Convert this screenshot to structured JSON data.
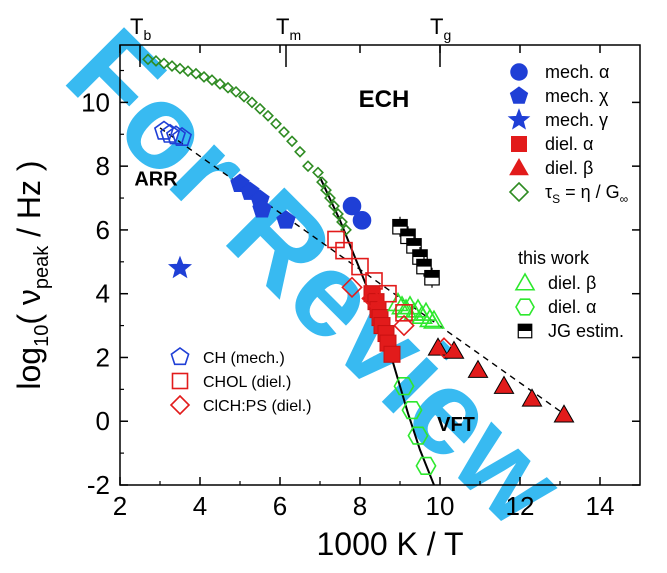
{
  "colors": {
    "blue": "#1f3fd6",
    "red": "#e21b1b",
    "dark_red": "#c81010",
    "green": "#2e8b22",
    "light_green": "#2ee82e",
    "black": "#000000",
    "watermark": "#22b3f0"
  },
  "watermark_text": "For Review",
  "chart_data": {
    "type": "scatter",
    "xlabel": "1000 K / T",
    "ylabel_parts": {
      "main": "log",
      "sub": "10",
      "open": "( ν",
      "peak": "peak",
      "unit": " / Hz )"
    },
    "xlim": [
      2,
      15
    ],
    "ylim": [
      -2,
      11.8
    ],
    "x_ticks": [
      2,
      4,
      6,
      8,
      10,
      12,
      14
    ],
    "y_ticks": [
      -2,
      0,
      2,
      4,
      6,
      8,
      10
    ],
    "top_axis_labels": [
      {
        "main": "T",
        "sub": "b",
        "x": 2.5
      },
      {
        "main": "T",
        "sub": "m",
        "x": 6.15
      },
      {
        "main": "T",
        "sub": "g",
        "x": 10.0
      }
    ],
    "annotations": [
      {
        "text": "ECH",
        "x": 8.6,
        "y": 9.85
      },
      {
        "text": "ARR",
        "x": 2.9,
        "y": 7.4
      },
      {
        "text": "VFT",
        "x": 10.4,
        "y": -0.3
      }
    ],
    "legend_right": [
      {
        "label": "mech. α",
        "marker": "circle",
        "fill": "blue"
      },
      {
        "label": "mech. χ",
        "marker": "pentagon",
        "fill": "blue"
      },
      {
        "label": "mech. γ",
        "marker": "star",
        "fill": "blue"
      },
      {
        "label": "diel. α",
        "marker": "square",
        "fill": "red"
      },
      {
        "label": "diel. β",
        "marker": "triangle",
        "fill": "red"
      },
      {
        "label_main": "τ",
        "label_sub": "S",
        "label_rest": " = η / G",
        "label_sub2": "∞",
        "marker": "diamond",
        "fill": "none",
        "stroke": "green"
      }
    ],
    "legend_this_work": {
      "title": "this work",
      "items": [
        {
          "label": "diel. β",
          "marker": "triangle",
          "fill": "none",
          "stroke": "light_green"
        },
        {
          "label": "diel. α",
          "marker": "hexagon",
          "fill": "none",
          "stroke": "light_green"
        },
        {
          "label": "JG estim.",
          "marker": "halfsquare",
          "fill": "black"
        }
      ]
    },
    "legend_left": [
      {
        "label": "CH  (mech.)",
        "marker": "pentagon",
        "fill": "none",
        "stroke": "blue"
      },
      {
        "label": "CHOL (diel.)",
        "marker": "square",
        "fill": "none",
        "stroke": "red"
      },
      {
        "label": "ClCH:PS (diel.)",
        "marker": "diamond",
        "fill": "none",
        "stroke": "red"
      }
    ],
    "series": [
      {
        "name": "mech. α",
        "marker": "circle",
        "fill": "blue",
        "stroke": "blue",
        "points": [
          [
            7.8,
            6.75
          ],
          [
            8.05,
            6.3
          ]
        ]
      },
      {
        "name": "mech. χ",
        "marker": "pentagon",
        "fill": "blue",
        "stroke": "blue",
        "points": [
          [
            5.0,
            7.45
          ],
          [
            5.25,
            7.2
          ],
          [
            5.5,
            6.95
          ],
          [
            5.55,
            6.65
          ],
          [
            6.15,
            6.3
          ]
        ]
      },
      {
        "name": "mech. γ",
        "marker": "star",
        "fill": "blue",
        "stroke": "blue",
        "points": [
          [
            3.5,
            4.8
          ]
        ]
      },
      {
        "name": "diel. α",
        "marker": "square",
        "fill": "red",
        "stroke": "dark_red",
        "points": [
          [
            8.3,
            4.0
          ],
          [
            8.4,
            3.75
          ],
          [
            8.45,
            3.5
          ],
          [
            8.5,
            3.25
          ],
          [
            8.55,
            3.0
          ],
          [
            8.65,
            2.75
          ],
          [
            8.7,
            2.45
          ],
          [
            8.8,
            2.1
          ]
        ]
      },
      {
        "name": "diel. β",
        "marker": "triangle",
        "fill": "red",
        "stroke": "black",
        "points": [
          [
            9.95,
            2.3
          ],
          [
            10.35,
            2.2
          ],
          [
            10.95,
            1.6
          ],
          [
            11.6,
            1.1
          ],
          [
            12.3,
            0.7
          ],
          [
            13.1,
            0.2
          ]
        ]
      },
      {
        "name": "tau_S",
        "marker": "diamond",
        "fill": "none",
        "stroke": "green",
        "points": [
          [
            2.7,
            11.35
          ],
          [
            2.9,
            11.3
          ],
          [
            3.1,
            11.22
          ],
          [
            3.3,
            11.14
          ],
          [
            3.5,
            11.06
          ],
          [
            3.7,
            10.98
          ],
          [
            3.9,
            10.9
          ],
          [
            4.1,
            10.8
          ],
          [
            4.3,
            10.7
          ],
          [
            4.5,
            10.58
          ],
          [
            4.7,
            10.46
          ],
          [
            4.9,
            10.33
          ],
          [
            5.1,
            10.18
          ],
          [
            5.3,
            10.0
          ],
          [
            5.5,
            9.8
          ],
          [
            5.7,
            9.58
          ],
          [
            5.9,
            9.33
          ],
          [
            6.1,
            9.07
          ],
          [
            6.3,
            8.78
          ],
          [
            6.5,
            8.45
          ],
          [
            6.7,
            8.0
          ],
          [
            6.95,
            7.8
          ],
          [
            7.05,
            7.5
          ],
          [
            7.15,
            7.25
          ],
          [
            7.25,
            7.0
          ],
          [
            7.35,
            6.75
          ],
          [
            7.45,
            6.5
          ],
          [
            7.55,
            6.25
          ],
          [
            7.65,
            6.0
          ]
        ]
      },
      {
        "name": "this work diel. β",
        "marker": "triangle",
        "fill": "none",
        "stroke": "light_green",
        "points": [
          [
            8.95,
            3.7
          ],
          [
            9.05,
            3.6
          ],
          [
            9.15,
            3.5
          ],
          [
            9.25,
            3.6
          ],
          [
            9.35,
            3.4
          ],
          [
            9.45,
            3.5
          ],
          [
            9.55,
            3.3
          ],
          [
            9.65,
            3.4
          ],
          [
            9.75,
            3.2
          ],
          [
            9.85,
            3.15
          ]
        ]
      },
      {
        "name": "this work diel. α",
        "marker": "hexagon",
        "fill": "none",
        "stroke": "light_green",
        "points": [
          [
            9.1,
            1.1
          ],
          [
            9.3,
            0.35
          ],
          [
            9.45,
            -0.45
          ],
          [
            9.65,
            -1.4
          ]
        ]
      },
      {
        "name": "JG estim.",
        "marker": "halfsquare",
        "fill": "black",
        "stroke": "black",
        "points": [
          [
            9.0,
            6.1
          ],
          [
            9.2,
            5.8
          ],
          [
            9.35,
            5.5
          ],
          [
            9.5,
            5.15
          ],
          [
            9.6,
            4.85
          ],
          [
            9.8,
            4.5
          ]
        ]
      },
      {
        "name": "CH (mech.)",
        "marker": "pentagon",
        "fill": "none",
        "stroke": "blue",
        "points": [
          [
            3.1,
            9.1
          ],
          [
            3.25,
            9.0
          ],
          [
            3.4,
            8.95
          ],
          [
            3.55,
            8.9
          ]
        ]
      },
      {
        "name": "CHOL (diel.)",
        "marker": "square",
        "fill": "none",
        "stroke": "red",
        "points": [
          [
            7.4,
            5.7
          ],
          [
            7.6,
            5.35
          ],
          [
            8.0,
            4.85
          ],
          [
            8.35,
            4.4
          ],
          [
            8.7,
            4.0
          ],
          [
            9.1,
            3.4
          ]
        ]
      },
      {
        "name": "ClCH:PS (diel.)",
        "marker": "diamond",
        "fill": "none",
        "stroke": "red",
        "points": [
          [
            7.8,
            4.2
          ],
          [
            8.3,
            3.85
          ],
          [
            9.1,
            3.0
          ],
          [
            10.1,
            2.3
          ]
        ]
      }
    ],
    "lines": [
      {
        "name": "ARR",
        "style": "dashed",
        "points": [
          [
            3.0,
            9.2
          ],
          [
            13.3,
            0.05
          ]
        ]
      },
      {
        "name": "VFT",
        "style": "solid",
        "points": [
          [
            7.0,
            7.65
          ],
          [
            7.5,
            6.3
          ],
          [
            8.0,
            4.75
          ],
          [
            8.4,
            3.5
          ],
          [
            8.8,
            1.95
          ],
          [
            9.2,
            0.25
          ],
          [
            9.5,
            -0.9
          ],
          [
            9.85,
            -2.0
          ]
        ]
      }
    ],
    "error_bars_on": "JG estim."
  }
}
